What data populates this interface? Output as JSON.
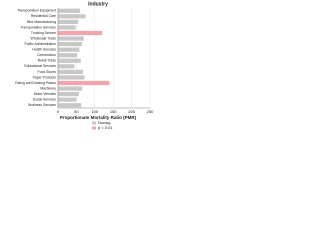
{
  "chart_data": {
    "type": "barh",
    "title": "Industry",
    "x_label": "Proportionate Mortality Ratio (PMR)",
    "categories": [
      "Transportation Equipment",
      "Residential Care",
      "Misc Manufacturing",
      "Transportation Services",
      "Trucking Service",
      "Wholesale Trade",
      "Public Administration",
      "Health Services",
      "Construction",
      "Retail Trade",
      "Educational Services",
      "Food Stores",
      "Paper Products",
      "Eating and Drinking Places",
      "Machinery",
      "Motor Vehicles",
      "Social Services",
      "Business Services"
    ],
    "series": [
      {
        "name": "Nonsig",
        "color": "#c8c8c8",
        "values": [
          60,
          75,
          55,
          48,
          null,
          70,
          65,
          58,
          52,
          62,
          45,
          68,
          72,
          null,
          66,
          57,
          50,
          63
        ]
      },
      {
        "name": "p < 0.01",
        "color": "#f4a3a8",
        "values": [
          null,
          null,
          null,
          null,
          120,
          null,
          null,
          null,
          null,
          null,
          null,
          null,
          null,
          140,
          null,
          null,
          null,
          null
        ]
      }
    ],
    "xlim": [
      0,
      250
    ],
    "xticks": [
      0,
      50,
      100,
      150,
      200,
      250
    ],
    "grid": true
  }
}
